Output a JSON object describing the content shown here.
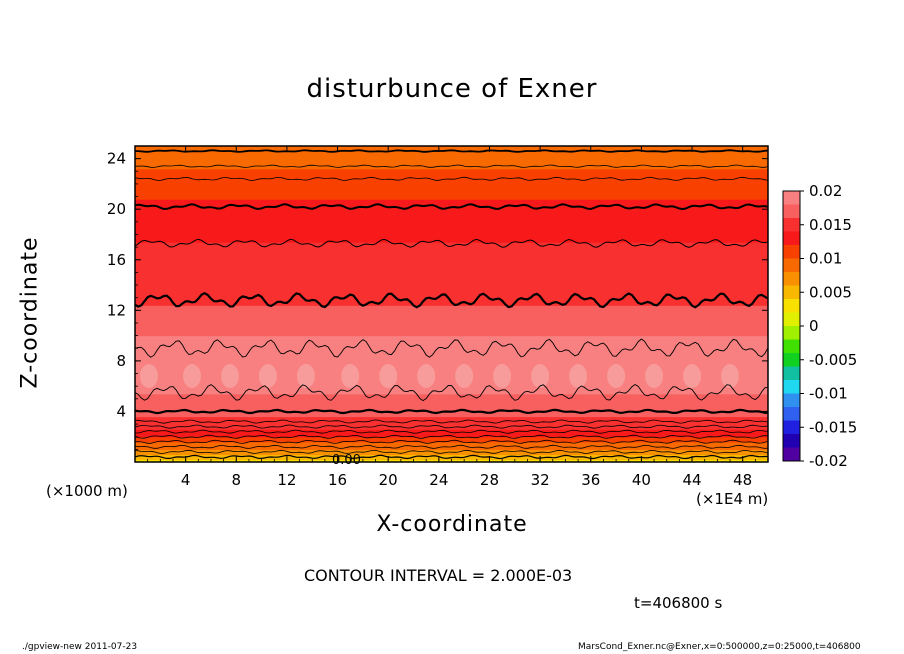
{
  "chart_data": {
    "type": "heatmap",
    "title": "disturbunce of Exner",
    "xlabel": "X-coordinate",
    "ylabel": "Z-coordinate",
    "x_unit_label": "(×1E4 m)",
    "y_unit_label": "(×1000 m)",
    "xlim": [
      0,
      50
    ],
    "ylim": [
      0,
      25
    ],
    "x_ticks": [
      4,
      8,
      12,
      16,
      20,
      24,
      28,
      32,
      36,
      40,
      44,
      48
    ],
    "y_ticks": [
      4,
      8,
      12,
      16,
      20,
      24
    ],
    "colorbar": {
      "range": [
        -0.02,
        0.02
      ],
      "tick_labels": [
        "0.02",
        "0.015",
        "0.01",
        "0.005",
        "0",
        "-0.005",
        "-0.01",
        "-0.015",
        "-0.02"
      ],
      "tick_values": [
        0.02,
        0.015,
        0.01,
        0.005,
        0,
        -0.005,
        -0.01,
        -0.015,
        -0.02
      ],
      "colors": [
        "#f88080",
        "#f86060",
        "#f83030",
        "#f81a1a",
        "#f84000",
        "#f86a00",
        "#f89000",
        "#f8b800",
        "#f8e000",
        "#e0f000",
        "#a0f000",
        "#40e000",
        "#10d020",
        "#10c0a0",
        "#20d8f0",
        "#3090f0",
        "#3060f0",
        "#2020e0",
        "#2000b0",
        "#5000a0"
      ]
    },
    "profile_z": [
      0,
      1,
      2,
      3,
      4,
      5,
      6,
      7,
      8,
      9,
      10,
      11,
      12,
      13,
      14,
      15,
      16,
      17,
      18,
      19,
      20,
      21,
      22,
      23,
      24,
      25
    ],
    "profile_value": [
      0.003,
      0.008,
      0.012,
      0.0155,
      0.0165,
      0.0175,
      0.0185,
      0.0195,
      0.0198,
      0.0192,
      0.018,
      0.0172,
      0.0162,
      0.0158,
      0.0152,
      0.0148,
      0.0145,
      0.0142,
      0.0138,
      0.0132,
      0.0125,
      0.0118,
      0.011,
      0.0102,
      0.0092,
      0.0082
    ],
    "zero_contour_label": "0.00",
    "contour_interval_text": "CONTOUR INTERVAL = 2.000E-03",
    "time_text": "t=406800 s"
  },
  "footer": {
    "left": "./gpview-new  2011-07-23",
    "right": "MarsCond_Exner.nc@Exner,x=0:500000,z=0:25000,t=406800"
  }
}
